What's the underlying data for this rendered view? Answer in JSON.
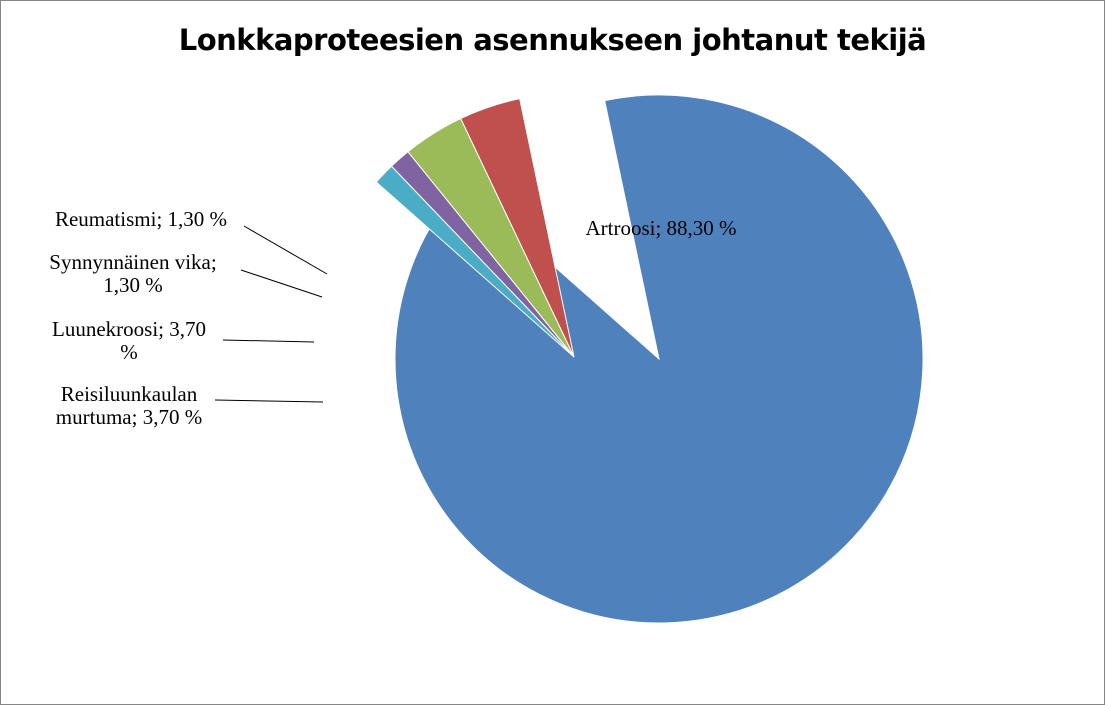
{
  "chart_data": {
    "type": "pie",
    "title": "Lonkkaproteesien asennukseen johtanut tekijä",
    "slices": [
      {
        "name": "Artroosi",
        "value": 88.3,
        "label_lines": [
          "Artroosi; 88,30 %"
        ],
        "color": "#4F81BD",
        "exploded": true
      },
      {
        "name": "Reisiluunkaulan murtuma",
        "value": 3.7,
        "label_lines": [
          "Reisiluunkaulan",
          "murtuma; 3,70 %"
        ],
        "color": "#C0504D"
      },
      {
        "name": "Luunekroosi",
        "value": 3.7,
        "label_lines": [
          "Luunekroosi; 3,70",
          "%"
        ],
        "color": "#9BBB59"
      },
      {
        "name": "Synnynnäinen vika",
        "value": 1.3,
        "label_lines": [
          "Synnynnäinen vika;",
          "1,30 %"
        ],
        "color": "#8064A2"
      },
      {
        "name": "Reumatismi",
        "value": 1.3,
        "label_lines": [
          "Reumatismi; 1,30 %"
        ],
        "color": "#4BACC6"
      }
    ],
    "legend": "none"
  }
}
